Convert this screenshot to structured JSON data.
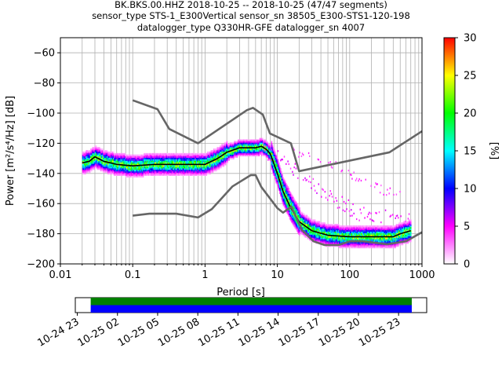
{
  "window": {
    "title_line1": "BK.BKS.00.HHZ   2018-10-25 -- 2018-10-25  (47/47 segments)",
    "title_line2": "sensor_type STS-1_E300Vertical sensor_sn 38505_E300-STS1-120-198",
    "title_line3": "datalogger_type Q330HR-GFE datalogger_sn 4007"
  },
  "chart_data": [
    {
      "type": "heatmap",
      "x_scale": "log",
      "xlim": [
        0.01,
        1000
      ],
      "ylim": [
        -200,
        -50
      ],
      "xlabel": "Period [s]",
      "ylabel": "Power [m²/s⁴/Hz] [dB]",
      "x_tick_labels": [
        "0.01",
        "0.1",
        "1",
        "10",
        "100",
        "1000"
      ],
      "y_tick_labels": [
        "−60",
        "−80",
        "−100",
        "−120",
        "−140",
        "−160",
        "−180",
        "−200"
      ],
      "grid": true,
      "colorbar": {
        "label": "[%]",
        "range": [
          0,
          30
        ],
        "tick_labels": [
          "0",
          "5",
          "10",
          "15",
          "20",
          "25",
          "30"
        ],
        "colormap": "pqlx",
        "stops": [
          "#ffffff",
          "#ff00ff",
          "#0000ff",
          "#00ffff",
          "#00ff00",
          "#ffff00",
          "#ff0000"
        ]
      },
      "series": [
        {
          "kind": "mode_curve",
          "color": "#000000",
          "x": [
            0.02,
            0.025,
            0.03,
            0.04,
            0.06,
            0.1,
            0.2,
            0.5,
            1,
            1.5,
            2,
            3,
            4,
            5,
            6,
            7,
            8,
            10,
            12,
            15,
            20,
            30,
            50,
            100,
            200,
            400,
            500,
            700
          ],
          "y": [
            -133,
            -132,
            -129,
            -132,
            -134,
            -135,
            -134,
            -134,
            -134,
            -130,
            -126,
            -123,
            -123,
            -123,
            -122,
            -124,
            -127,
            -140,
            -152,
            -162,
            -172,
            -178,
            -181,
            -182,
            -182,
            -182,
            -180,
            -178
          ]
        },
        {
          "kind": "nhnm",
          "color": "#666666",
          "x": [
            0.1,
            0.22,
            0.32,
            0.8,
            3.8,
            4.6,
            6.3,
            7.9,
            15.4,
            20,
            354.8,
            1000
          ],
          "y": [
            -91.5,
            -97.4,
            -110.5,
            -120,
            -98,
            -96.5,
            -101,
            -113.5,
            -120,
            -138.5,
            -126,
            -112
          ]
        },
        {
          "kind": "nlnm",
          "color": "#666666",
          "x": [
            0.1,
            0.17,
            0.4,
            0.8,
            1.24,
            2.4,
            4.3,
            5,
            6,
            10,
            12,
            15.6,
            21.9,
            31.6,
            45,
            70,
            101,
            154,
            328,
            600,
            1000
          ],
          "y": [
            -168,
            -166.7,
            -166.7,
            -169.2,
            -163.7,
            -148.6,
            -141.1,
            -141.1,
            -149,
            -163,
            -166,
            -162,
            -177.5,
            -185,
            -187.5,
            -187.5,
            -185,
            -185,
            -187,
            -185,
            -179
          ]
        }
      ],
      "density": {
        "primary_band_x": [
          0.02,
          0.025,
          0.03,
          0.04,
          0.06,
          0.1,
          0.2,
          0.5,
          1,
          1.5,
          2,
          3,
          4,
          5,
          6,
          7,
          8,
          10,
          12,
          15,
          20,
          30,
          50,
          100,
          200,
          400,
          500,
          700
        ],
        "secondary_band": {
          "x": [
            5,
            7,
            10,
            15,
            20,
            30,
            50,
            80,
            120,
            200,
            300,
            500,
            700
          ],
          "y": [
            -122,
            -126,
            -130,
            -135,
            -140,
            -148,
            -155,
            -160,
            -166,
            -168,
            -168,
            -170,
            -170
          ]
        },
        "tertiary_band": {
          "x": [
            15,
            20,
            30,
            50,
            80,
            150,
            300,
            500
          ],
          "y": [
            -125,
            -128,
            -130,
            -133,
            -137,
            -145,
            -152,
            -153
          ]
        }
      }
    },
    {
      "type": "bar",
      "title": "",
      "x_tick_labels": [
        "10-24 23",
        "10-25 02",
        "10-25 05",
        "10-25 08",
        "10-25 11",
        "10-25 14",
        "10-25 17",
        "10-25 20",
        "10-25 23"
      ],
      "segments": [
        {
          "row": "upper",
          "color": "#008000",
          "start": "2018-10-25 00:00",
          "end": "2018-10-25 23:59"
        },
        {
          "row": "lower",
          "color": "#0000ff",
          "start": "2018-10-25 00:00",
          "end": "2018-10-25 23:59"
        }
      ]
    }
  ]
}
